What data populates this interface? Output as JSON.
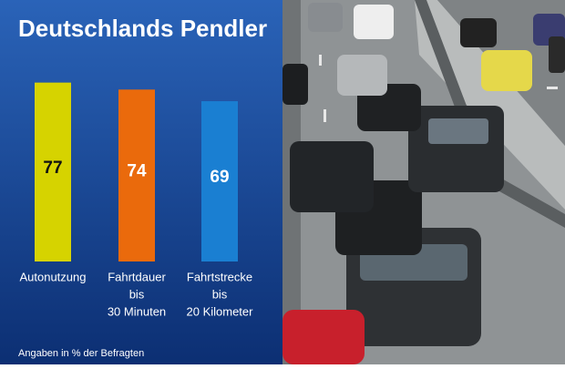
{
  "chart_data": {
    "type": "bar",
    "title": "Deutschlands Pendler",
    "categories": [
      [
        "Autonutzung"
      ],
      [
        "Fahrtdauer",
        "bis",
        "30 Minuten"
      ],
      [
        "Fahrtstrecke",
        "bis",
        "20 Kilometer"
      ]
    ],
    "values": [
      77,
      74,
      69
    ],
    "colors": [
      "#d6d300",
      "#ea6a0c",
      "#1a7fd2"
    ],
    "footnote": "Angaben in % der Befragten"
  }
}
